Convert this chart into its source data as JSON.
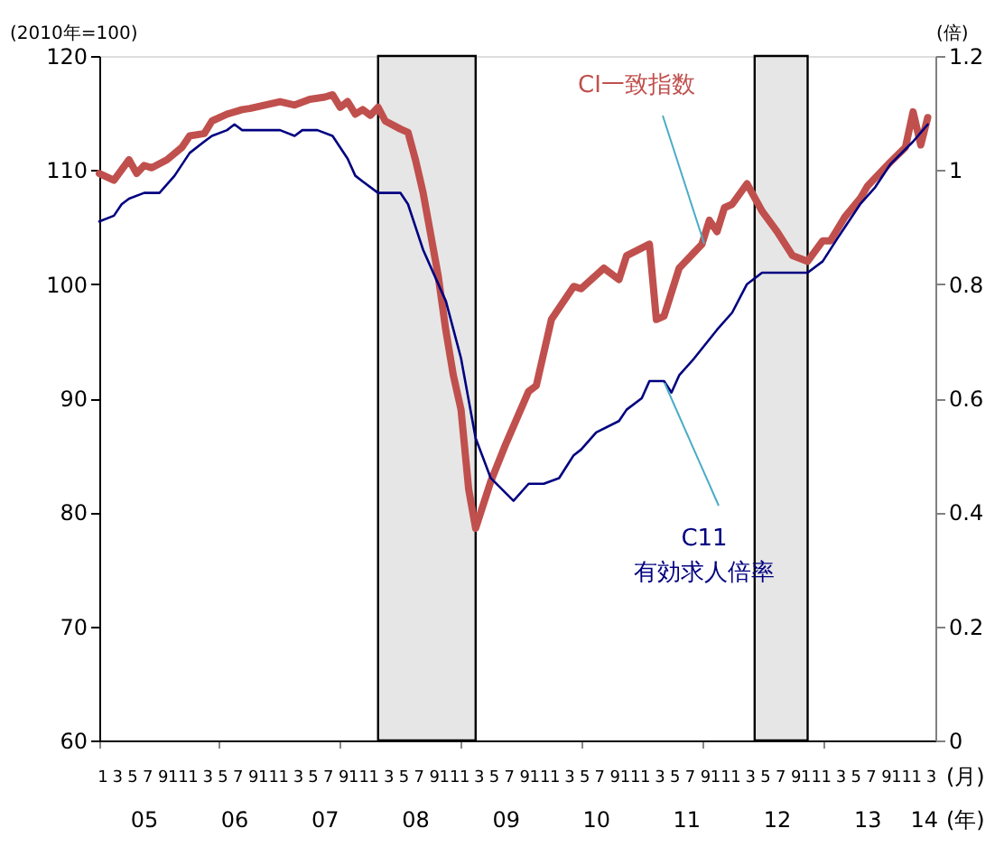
{
  "chart_data": {
    "type": "line",
    "ylabel": "(2010年=100)",
    "y2label": "(倍)",
    "xlabel": "(月)",
    "xlim": [
      "2005-01-01",
      "2014-04-01"
    ],
    "ylim": [
      60,
      120
    ],
    "yticks": [
      60,
      70,
      80,
      90,
      100,
      110,
      120
    ],
    "y2lim": [
      0,
      1.2
    ],
    "y2ticks": [
      {
        "value": 0,
        "label": "0"
      },
      {
        "value": 0.2,
        "label": "0.2"
      },
      {
        "value": 0.4,
        "label": "0.4"
      },
      {
        "value": 0.6,
        "label": "0.6"
      },
      {
        "value": 0.8,
        "label": "0.8"
      },
      {
        "value": 1,
        "label": "1"
      },
      {
        "value": 1.2,
        "label": "1.2"
      }
    ],
    "xticks": [
      {
        "value": "2005-01",
        "label": "1"
      },
      {
        "value": "2005-03",
        "label": "3"
      },
      {
        "value": "2005-05",
        "label": "5"
      },
      {
        "value": "2005-07",
        "label": "7"
      },
      {
        "value": "2005-09",
        "label": "9"
      },
      {
        "value": "2005-11",
        "label": "11"
      },
      {
        "value": "2006-01",
        "label": "1"
      },
      {
        "value": "2006-03",
        "label": "3"
      },
      {
        "value": "2006-05",
        "label": "5"
      },
      {
        "value": "2006-07",
        "label": "7"
      },
      {
        "value": "2006-09",
        "label": "9"
      },
      {
        "value": "2006-11",
        "label": "11"
      },
      {
        "value": "2007-01",
        "label": "1"
      },
      {
        "value": "2007-03",
        "label": "3"
      },
      {
        "value": "2007-05",
        "label": "5"
      },
      {
        "value": "2007-07",
        "label": "7"
      },
      {
        "value": "2007-09",
        "label": "9"
      },
      {
        "value": "2007-11",
        "label": "11"
      },
      {
        "value": "2008-01",
        "label": "1"
      },
      {
        "value": "2008-03",
        "label": "3"
      },
      {
        "value": "2008-05",
        "label": "5"
      },
      {
        "value": "2008-07",
        "label": "7"
      },
      {
        "value": "2008-09",
        "label": "9"
      },
      {
        "value": "2008-11",
        "label": "11"
      },
      {
        "value": "2009-01",
        "label": "1"
      },
      {
        "value": "2009-03",
        "label": "3"
      },
      {
        "value": "2009-05",
        "label": "5"
      },
      {
        "value": "2009-07",
        "label": "7"
      },
      {
        "value": "2009-09",
        "label": "9"
      },
      {
        "value": "2009-11",
        "label": "11"
      },
      {
        "value": "2010-01",
        "label": "1"
      },
      {
        "value": "2010-03",
        "label": "3"
      },
      {
        "value": "2010-05",
        "label": "5"
      },
      {
        "value": "2010-07",
        "label": "7"
      },
      {
        "value": "2010-09",
        "label": "9"
      },
      {
        "value": "2010-11",
        "label": "11"
      },
      {
        "value": "2011-01",
        "label": "1"
      },
      {
        "value": "2011-03",
        "label": "3"
      },
      {
        "value": "2011-05",
        "label": "5"
      },
      {
        "value": "2011-07",
        "label": "7"
      },
      {
        "value": "2011-09",
        "label": "9"
      },
      {
        "value": "2011-11",
        "label": "11"
      },
      {
        "value": "2012-01",
        "label": "1"
      },
      {
        "value": "2012-03",
        "label": "3"
      },
      {
        "value": "2012-05",
        "label": "5"
      },
      {
        "value": "2012-07",
        "label": "7"
      },
      {
        "value": "2012-09",
        "label": "9"
      },
      {
        "value": "2012-11",
        "label": "11"
      },
      {
        "value": "2013-01",
        "label": "1"
      },
      {
        "value": "2013-03",
        "label": "3"
      },
      {
        "value": "2013-05",
        "label": "5"
      },
      {
        "value": "2013-07",
        "label": "7"
      },
      {
        "value": "2013-09",
        "label": "9"
      },
      {
        "value": "2013-11",
        "label": "11"
      },
      {
        "value": "2014-01",
        "label": "1"
      },
      {
        "value": "2014-03",
        "label": "3"
      }
    ],
    "bands": [
      {
        "axis": "x",
        "from": "2008-02",
        "to": "2009-03",
        "color": "#e6e6e6"
      },
      {
        "axis": "x",
        "from": "2012-04",
        "to": "2012-11",
        "color": "#e6e6e6"
      }
    ],
    "annotations": [
      "05",
      "06",
      "07",
      "08",
      "09",
      "10",
      "11",
      "12",
      "13",
      "14",
      "(年)"
    ],
    "legend": false,
    "grid": false,
    "series": [
      {
        "name": "CI一致指数",
        "color": "#c0504d",
        "x": [
          "2005-01",
          "2005-03",
          "2005-05",
          "2005-06",
          "2005-07",
          "2005-08",
          "2005-10",
          "2005-12",
          "2006-01",
          "2006-03",
          "2006-04",
          "2006-06",
          "2006-08",
          "2006-09",
          "2006-11",
          "2007-01",
          "2007-03",
          "2007-05",
          "2007-07",
          "2007-08",
          "2007-09",
          "2007-10",
          "2007-11",
          "2007-12",
          "2008-01",
          "2008-02",
          "2008-03",
          "2008-05",
          "2008-06",
          "2008-07",
          "2008-08",
          "2008-09",
          "2008-10",
          "2008-11",
          "2008-12",
          "2009-01",
          "2009-02",
          "2009-03",
          "2009-05",
          "2009-07",
          "2009-10",
          "2009-11",
          "2010-01",
          "2010-04",
          "2010-05",
          "2010-08",
          "2010-10",
          "2010-11",
          "2011-02",
          "2011-03",
          "2011-04",
          "2011-06",
          "2011-09",
          "2011-10",
          "2011-11",
          "2011-12",
          "2012-01",
          "2012-03",
          "2012-05",
          "2012-07",
          "2012-09",
          "2012-11",
          "2013-01",
          "2013-02",
          "2013-04",
          "2013-06",
          "2013-07",
          "2013-10",
          "2013-12",
          "2014-01",
          "2014-02",
          "2014-03"
        ],
        "values": [
          109.7,
          109.1,
          110.9,
          109.7,
          110.4,
          110.2,
          110.9,
          112.0,
          113.0,
          113.2,
          114.3,
          114.9,
          115.3,
          115.4,
          115.7,
          116.0,
          115.7,
          116.2,
          116.4,
          116.6,
          115.5,
          116.0,
          114.9,
          115.3,
          114.8,
          115.5,
          114.3,
          113.6,
          113.3,
          110.9,
          108.0,
          104.3,
          100.7,
          95.9,
          92.0,
          89.0,
          82.0,
          78.6,
          82.7,
          86.0,
          90.6,
          91.1,
          96.9,
          99.8,
          99.6,
          101.4,
          100.4,
          102.5,
          103.5,
          96.9,
          97.2,
          101.4,
          103.5,
          105.6,
          104.6,
          106.7,
          107.0,
          108.8,
          106.4,
          104.6,
          102.5,
          102.0,
          103.8,
          103.8,
          105.9,
          107.5,
          108.6,
          110.7,
          112.0,
          115.1,
          112.2,
          114.6
        ]
      },
      {
        "name": "C11\n有効求人倍率",
        "color": "#000080",
        "axis": "y2",
        "x": [
          "2005-01",
          "2005-03",
          "2005-04",
          "2005-05",
          "2005-07",
          "2005-09",
          "2005-11",
          "2006-01",
          "2006-03",
          "2006-04",
          "2006-06",
          "2006-07",
          "2006-08",
          "2006-10",
          "2007-01",
          "2007-03",
          "2007-04",
          "2007-06",
          "2007-08",
          "2007-10",
          "2007-11",
          "2007-12",
          "2008-02",
          "2008-05",
          "2008-06",
          "2008-08",
          "2008-11",
          "2009-01",
          "2009-03",
          "2009-05",
          "2009-08",
          "2009-10",
          "2009-12",
          "2010-02",
          "2010-04",
          "2010-05",
          "2010-07",
          "2010-10",
          "2010-11",
          "2011-01",
          "2011-02",
          "2011-04",
          "2011-05",
          "2011-06",
          "2011-08",
          "2011-11",
          "2012-01",
          "2012-03",
          "2012-05",
          "2012-09",
          "2012-10",
          "2012-11",
          "2013-01",
          "2013-03",
          "2013-06",
          "2013-08",
          "2013-10",
          "2014-01",
          "2014-03"
        ],
        "values": [
          0.91,
          0.92,
          0.94,
          0.95,
          0.96,
          0.96,
          0.99,
          1.03,
          1.05,
          1.06,
          1.07,
          1.08,
          1.07,
          1.07,
          1.07,
          1.06,
          1.07,
          1.07,
          1.06,
          1.02,
          0.99,
          0.98,
          0.96,
          0.96,
          0.94,
          0.86,
          0.77,
          0.67,
          0.53,
          0.46,
          0.42,
          0.45,
          0.45,
          0.46,
          0.5,
          0.51,
          0.54,
          0.56,
          0.58,
          0.6,
          0.63,
          0.63,
          0.61,
          0.64,
          0.67,
          0.72,
          0.75,
          0.8,
          0.82,
          0.82,
          0.82,
          0.82,
          0.84,
          0.88,
          0.94,
          0.97,
          1.01,
          1.05,
          1.08
        ]
      }
    ]
  }
}
